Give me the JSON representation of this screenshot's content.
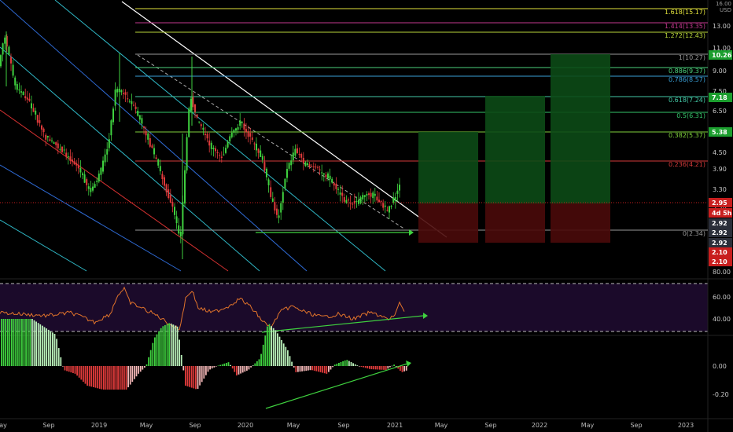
{
  "currency_label": "USD",
  "price_axis": {
    "top_partial": "16.00",
    "ticks": [
      {
        "label": "13.00",
        "v": 13.0
      },
      {
        "label": "11.00",
        "v": 11.0
      },
      {
        "label": "9.00",
        "v": 9.0
      },
      {
        "label": "7.50",
        "v": 7.5
      },
      {
        "label": "6.50",
        "v": 6.5
      },
      {
        "label": "5.50",
        "v": 5.5
      },
      {
        "label": "4.50",
        "v": 4.5
      },
      {
        "label": "3.90",
        "v": 3.9
      },
      {
        "label": "3.30",
        "v": 3.3
      },
      {
        "label": "2.70",
        "v": 2.7
      },
      {
        "label": "80.00",
        "v": 0
      }
    ],
    "badges": [
      {
        "label": "10.26",
        "color": "#1b9e2e"
      },
      {
        "label": "7.18",
        "color": "#1b9e2e"
      },
      {
        "label": "5.38",
        "color": "#1b9e2e"
      },
      {
        "label": "2.95",
        "color": "#c81e1e"
      },
      {
        "label": "4d 5h",
        "color": "#c81e1e"
      },
      {
        "label": "2.92",
        "color": "#2a2e39"
      },
      {
        "label": "2.92",
        "color": "#2a2e39"
      },
      {
        "label": "2.92",
        "color": "#2a2e39"
      },
      {
        "label": "2.10",
        "color": "#c81e1e"
      },
      {
        "label": "2.10",
        "color": "#c81e1e"
      }
    ]
  },
  "fib_levels": [
    {
      "label": "1.618(15.17)",
      "color": "#e2e23c"
    },
    {
      "label": "1.414(13.35)",
      "color": "#c2398e"
    },
    {
      "label": "1.272(12.43)",
      "color": "#b7d43a"
    },
    {
      "label": "1(10.27)",
      "color": "#9a9a9a"
    },
    {
      "label": "0.886(9.37)",
      "color": "#4bd17b"
    },
    {
      "label": "0.786(8.57)",
      "color": "#3aa0d8"
    },
    {
      "label": "0.618(7.24)",
      "color": "#43c9a6"
    },
    {
      "label": "0.5(6.31)",
      "color": "#35c46a"
    },
    {
      "label": "0.382(5.37)",
      "color": "#7fd13c"
    },
    {
      "label": "0.236(4.21)",
      "color": "#d53a3a"
    },
    {
      "label": "0(2.34)",
      "color": "#9a9a9a"
    }
  ],
  "rsi_axis": [
    "60.00",
    "40.00"
  ],
  "macd_axis": [
    "0.00",
    "-0.20"
  ],
  "time_axis": [
    "ay",
    "Sep",
    "2019",
    "May",
    "Sep",
    "2020",
    "May",
    "Sep",
    "2021",
    "May",
    "Sep",
    "2022",
    "May",
    "Sep",
    "2023"
  ],
  "colors": {
    "bull": "#3fd13f",
    "bear": "#e03b3b",
    "trend": "#ffffff",
    "rsi": "#e2742a",
    "rsi_bg": "#1b0a2a",
    "support": "#3fd13f",
    "profit": "#0c4a16",
    "loss": "#4a0a0a"
  }
}
